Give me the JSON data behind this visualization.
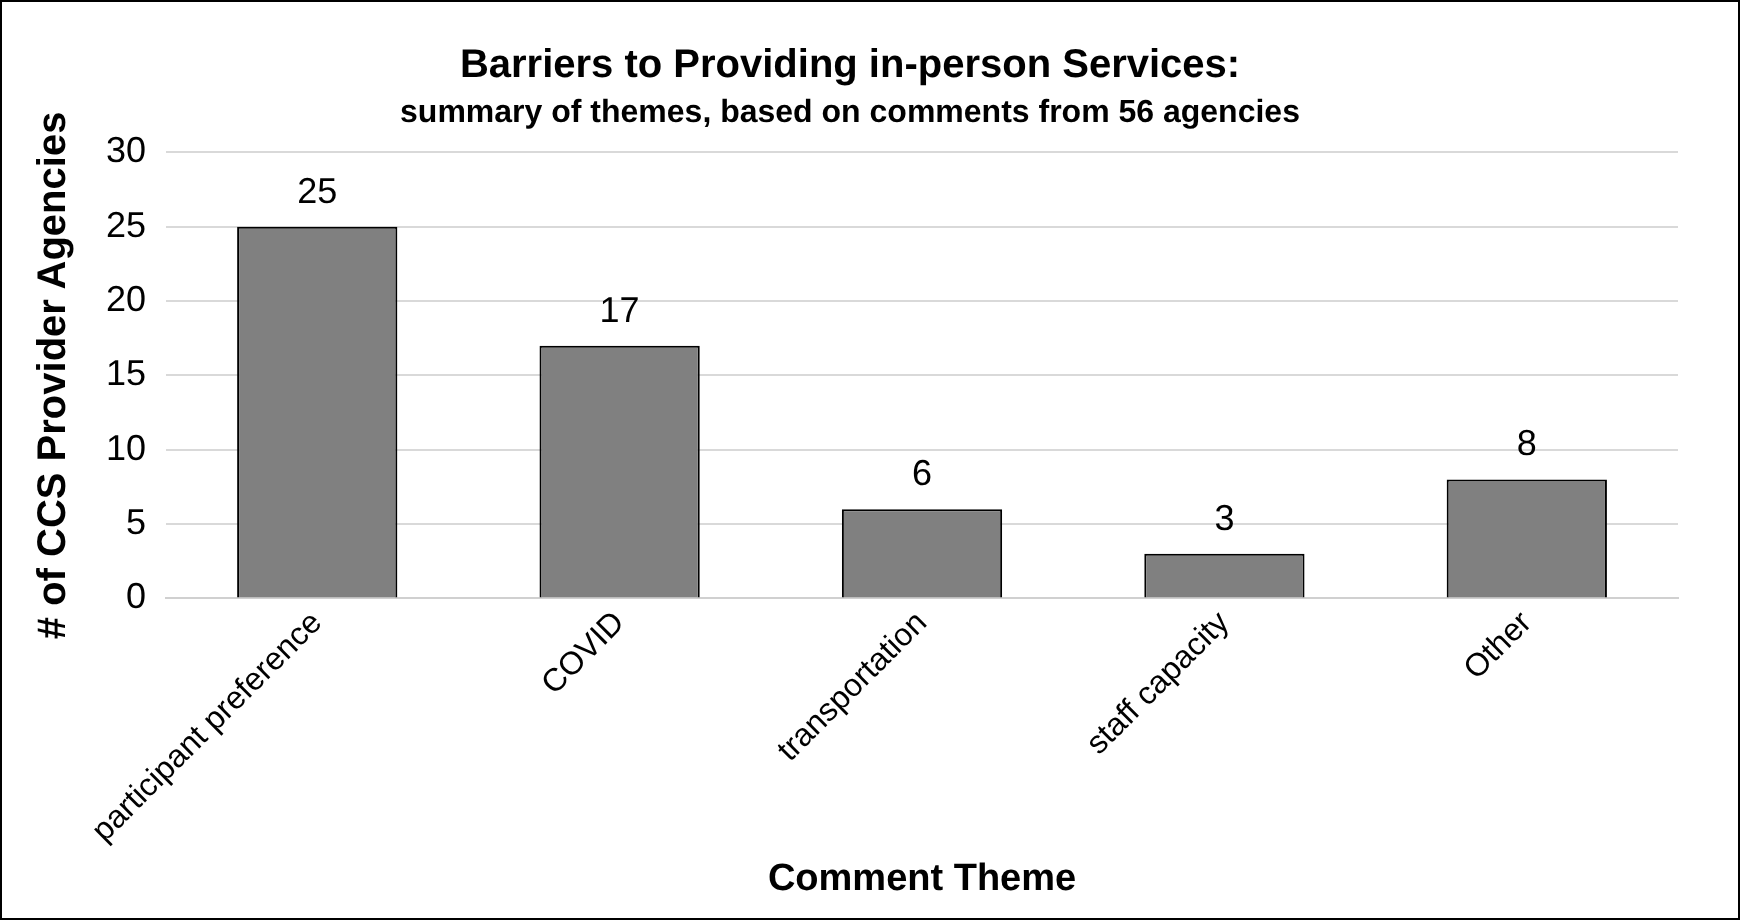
{
  "chart_data": {
    "type": "bar",
    "title": "Barriers to Providing in-person Services:",
    "subtitle": "summary of themes, based on comments from 56 agencies",
    "xlabel": "Comment Theme",
    "ylabel": "# of CCS Provider Agencies",
    "categories": [
      "participant preference",
      "COVID",
      "transportation",
      "staff capacity",
      "Other"
    ],
    "values": [
      25,
      17,
      6,
      3,
      8
    ],
    "color": "#808080",
    "ylim": [
      0,
      30
    ],
    "yticks": [
      0,
      5,
      10,
      15,
      20,
      25,
      30
    ],
    "grid": "y",
    "data_labels": true,
    "legend": false
  }
}
